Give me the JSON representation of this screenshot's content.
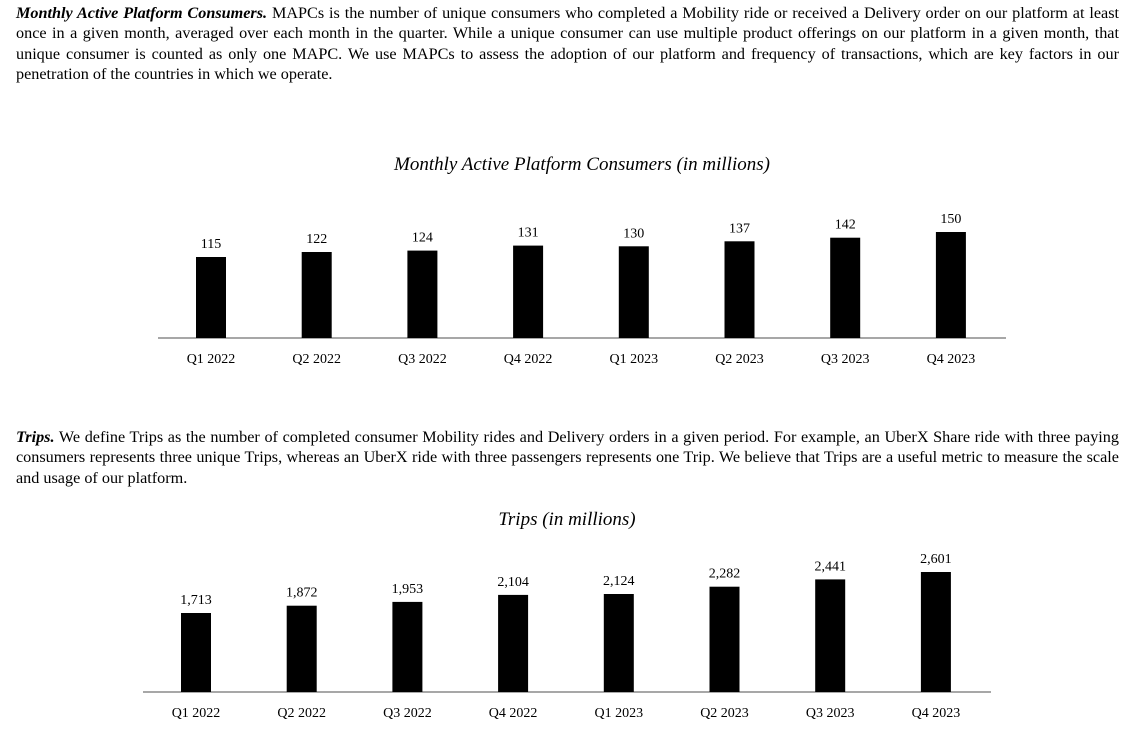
{
  "paragraphs": {
    "mapc": {
      "lead": "Monthly Active Platform Consumers.",
      "body": " MAPCs is the number of unique consumers who completed a Mobility ride or received a Delivery order on our platform at least once in a given month, averaged over each month in the quarter. While a unique consumer can use multiple product offerings on our platform in a given month, that unique consumer is counted as only one MAPC. We use MAPCs to assess the adoption of our platform and frequency of transactions, which are key factors in our penetration of the countries in which we operate."
    },
    "trips": {
      "lead": "Trips.",
      "body": " We define Trips as the number of completed consumer Mobility rides and Delivery orders in a given period. For example, an UberX Share ride with three paying consumers represents three unique Trips, whereas an UberX ride with three passengers represents one Trip. We believe that Trips are a useful metric to measure the scale and usage of our platform."
    }
  },
  "chart_data": [
    {
      "type": "bar",
      "title": "Monthly Active Platform Consumers (in millions)",
      "categories": [
        "Q1 2022",
        "Q2 2022",
        "Q3 2022",
        "Q4 2022",
        "Q1 2023",
        "Q2 2023",
        "Q3 2023",
        "Q4 2023"
      ],
      "values": [
        115,
        122,
        124,
        131,
        130,
        137,
        142,
        150
      ],
      "value_labels": [
        "115",
        "122",
        "124",
        "131",
        "130",
        "137",
        "142",
        "150"
      ],
      "xlabel": "",
      "ylabel": "",
      "ylim": [
        0,
        150
      ],
      "grid": false,
      "legend": "none",
      "bar_color": "#000000"
    },
    {
      "type": "bar",
      "title": "Trips (in millions)",
      "categories": [
        "Q1 2022",
        "Q2 2022",
        "Q3 2022",
        "Q4 2022",
        "Q1 2023",
        "Q2 2023",
        "Q3 2023",
        "Q4 2023"
      ],
      "values": [
        1713,
        1872,
        1953,
        2104,
        2124,
        2282,
        2441,
        2601
      ],
      "value_labels": [
        "1,713",
        "1,872",
        "1,953",
        "2,104",
        "2,124",
        "2,282",
        "2,441",
        "2,601"
      ],
      "xlabel": "",
      "ylabel": "",
      "ylim": [
        0,
        2601
      ],
      "grid": false,
      "legend": "none",
      "bar_color": "#000000"
    }
  ]
}
